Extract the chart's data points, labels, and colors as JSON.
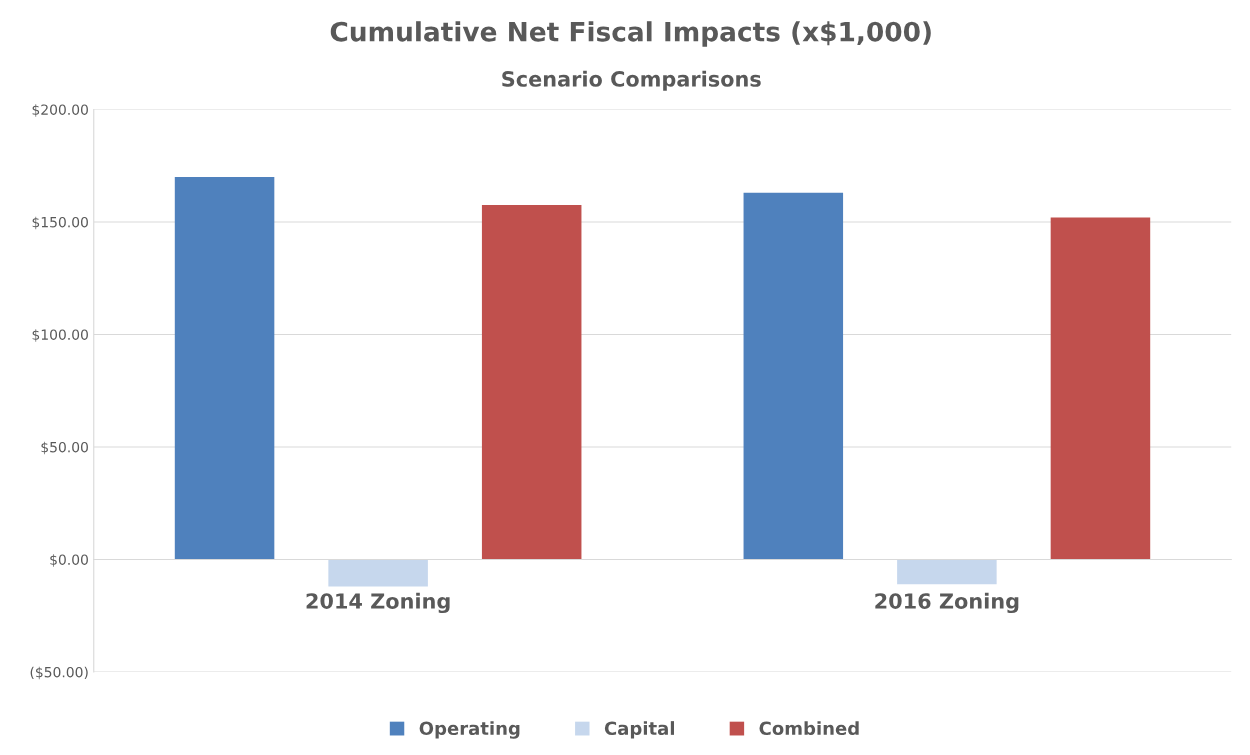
{
  "chart_data": {
    "type": "bar",
    "title": "Cumulative Net Fiscal Impacts (x$1,000)",
    "subtitle": "Scenario Comparisons",
    "categories": [
      "2014 Zoning",
      "2016 Zoning"
    ],
    "series": [
      {
        "name": "Operating",
        "color": "#4f81bd",
        "values": [
          170,
          163
        ]
      },
      {
        "name": "Capital",
        "color": "#c6d7ed",
        "values": [
          -12,
          -11
        ]
      },
      {
        "name": "Combined",
        "color": "#c0504d",
        "values": [
          157.5,
          152
        ]
      }
    ],
    "ylim": [
      -50,
      200
    ],
    "yticks": [
      {
        "value": -50,
        "label": "($50.00)"
      },
      {
        "value": 0,
        "label": "$0.00"
      },
      {
        "value": 50,
        "label": "$50.00"
      },
      {
        "value": 100,
        "label": "$100.00"
      },
      {
        "value": 150,
        "label": "$150.00"
      },
      {
        "value": 200,
        "label": "$200.00"
      }
    ],
    "grid": "y",
    "legend": "bottom"
  }
}
